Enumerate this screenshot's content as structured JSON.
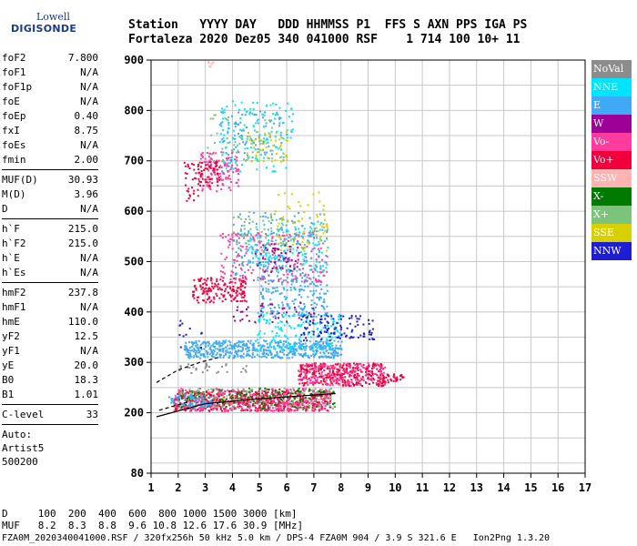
{
  "logo": {
    "line1": "Lowell",
    "line2": "DIGISONDE"
  },
  "header": {
    "line1": "Station   YYYY DAY   DDD HHMMSS P1  FFS S AXN PPS IGA PS",
    "line2": "Fortaleza 2020 Dez05 340 041000 RSF    1 714 100 10+ 11"
  },
  "params_group1": [
    {
      "k": "foF2",
      "v": "7.800"
    },
    {
      "k": "foF1",
      "v": "N/A"
    },
    {
      "k": "foF1p",
      "v": "N/A"
    },
    {
      "k": "foE",
      "v": "N/A"
    },
    {
      "k": "foEp",
      "v": "0.40"
    },
    {
      "k": "fxI",
      "v": "8.75"
    },
    {
      "k": "foEs",
      "v": "N/A"
    },
    {
      "k": "fmin",
      "v": "2.00"
    }
  ],
  "params_group2": [
    {
      "k": "MUF(D)",
      "v": "30.93"
    },
    {
      "k": "M(D)",
      "v": "3.96"
    },
    {
      "k": "D",
      "v": "N/A"
    }
  ],
  "params_group3": [
    {
      "k": "h`F",
      "v": "215.0"
    },
    {
      "k": "h`F2",
      "v": "215.0"
    },
    {
      "k": "h`E",
      "v": "N/A"
    },
    {
      "k": "h`Es",
      "v": "N/A"
    }
  ],
  "params_group4": [
    {
      "k": "hmF2",
      "v": "237.8"
    },
    {
      "k": "hmF1",
      "v": "N/A"
    },
    {
      "k": "hmE",
      "v": "110.0"
    },
    {
      "k": "yF2",
      "v": "12.5"
    },
    {
      "k": "yF1",
      "v": "N/A"
    },
    {
      "k": "yE",
      "v": "20.0"
    },
    {
      "k": "B0",
      "v": "18.3"
    },
    {
      "k": "B1",
      "v": "1.01"
    }
  ],
  "clevel": {
    "k": "C-level",
    "v": "33"
  },
  "auto": [
    "Auto:",
    "Artist5",
    "500200"
  ],
  "legend": [
    {
      "label": "NoVal",
      "color": "#8c8c8c"
    },
    {
      "label": "NNE",
      "color": "#00e5ff"
    },
    {
      "label": "E",
      "color": "#3fa9f5"
    },
    {
      "label": "W",
      "color": "#9c0096"
    },
    {
      "label": "Vo-",
      "color": "#ff3c9e"
    },
    {
      "label": "Vo+",
      "color": "#f0003c"
    },
    {
      "label": "SSW",
      "color": "#ffb4b4"
    },
    {
      "label": "X-",
      "color": "#007a00"
    },
    {
      "label": "X+",
      "color": "#7cc47c"
    },
    {
      "label": "SSE",
      "color": "#d8d000"
    },
    {
      "label": "NNW",
      "color": "#1e1ed2"
    }
  ],
  "footer": {
    "line1": "D     100  200  400  600  800 1000 1500 3000 [km]",
    "line2": "MUF   8.2  8.3  8.8  9.6 10.8 12.6 17.6 30.9 [MHz]"
  },
  "footnote": "FZA0M_2020340041000.RSF / 320fx256h 50 kHz 5.0 km / DPS-4 FZA0M 904 / 3.9 S 321.6 E   Ion2Png 1.3.20",
  "chart_data": {
    "type": "scatter",
    "xlim": [
      1,
      17
    ],
    "ylim": [
      80,
      900
    ],
    "xticks": [
      1,
      2,
      3,
      4,
      5,
      6,
      7,
      8,
      9,
      10,
      11,
      12,
      13,
      14,
      15,
      16,
      17
    ],
    "yticks": [
      80,
      200,
      300,
      400,
      500,
      600,
      700,
      800,
      900
    ],
    "grid": true,
    "legend_placement": "right",
    "clusters": [
      {
        "series": "Vo+",
        "x": [
          1.8,
          7.6
        ],
        "y": [
          205,
          245
        ],
        "n": 520
      },
      {
        "series": "Vo-",
        "x": [
          1.8,
          7.6
        ],
        "y": [
          205,
          250
        ],
        "n": 380
      },
      {
        "series": "X-",
        "x": [
          2.0,
          7.8
        ],
        "y": [
          210,
          250
        ],
        "n": 170
      },
      {
        "series": "X+",
        "x": [
          2.0,
          7.8
        ],
        "y": [
          210,
          250
        ],
        "n": 110
      },
      {
        "series": "E",
        "x": [
          1.6,
          3.2
        ],
        "y": [
          212,
          236
        ],
        "n": 70
      },
      {
        "series": "Vo+",
        "x": [
          6.4,
          9.6
        ],
        "y": [
          255,
          300
        ],
        "n": 320
      },
      {
        "series": "Vo-",
        "x": [
          6.4,
          9.6
        ],
        "y": [
          255,
          300
        ],
        "n": 160
      },
      {
        "series": "Vo+",
        "x": [
          9.5,
          10.3
        ],
        "y": [
          262,
          278
        ],
        "n": 30
      },
      {
        "series": "E",
        "x": [
          2.2,
          8.0
        ],
        "y": [
          310,
          345
        ],
        "n": 560
      },
      {
        "series": "NNE",
        "x": [
          4.8,
          8.0
        ],
        "y": [
          325,
          400
        ],
        "n": 160
      },
      {
        "series": "E",
        "x": [
          5.0,
          7.5
        ],
        "y": [
          390,
          470
        ],
        "n": 180
      },
      {
        "series": "NNW",
        "x": [
          6.5,
          9.2
        ],
        "y": [
          345,
          395
        ],
        "n": 110
      },
      {
        "series": "W",
        "x": [
          4.0,
          7.0
        ],
        "y": [
          380,
          420
        ],
        "n": 40
      },
      {
        "series": "Vo+",
        "x": [
          2.5,
          4.5
        ],
        "y": [
          420,
          470
        ],
        "n": 160
      },
      {
        "series": "Vo-",
        "x": [
          3.5,
          7.5
        ],
        "y": [
          460,
          560
        ],
        "n": 220
      },
      {
        "series": "E",
        "x": [
          4.0,
          7.5
        ],
        "y": [
          460,
          600
        ],
        "n": 180
      },
      {
        "series": "NNE",
        "x": [
          4.5,
          7.5
        ],
        "y": [
          480,
          580
        ],
        "n": 150
      },
      {
        "series": "SSE",
        "x": [
          5.5,
          7.5
        ],
        "y": [
          520,
          640
        ],
        "n": 70
      },
      {
        "series": "X+",
        "x": [
          4.0,
          6.0
        ],
        "y": [
          520,
          600
        ],
        "n": 60
      },
      {
        "series": "W",
        "x": [
          4.8,
          6.5
        ],
        "y": [
          480,
          540
        ],
        "n": 50
      },
      {
        "series": "Vo-",
        "x": [
          2.8,
          4.2
        ],
        "y": [
          640,
          720
        ],
        "n": 120
      },
      {
        "series": "Vo+",
        "x": [
          2.5,
          3.5
        ],
        "y": [
          650,
          700
        ],
        "n": 60
      },
      {
        "series": "NNE",
        "x": [
          3.5,
          6.2
        ],
        "y": [
          680,
          820
        ],
        "n": 140
      },
      {
        "series": "E",
        "x": [
          3.5,
          6.0
        ],
        "y": [
          700,
          800
        ],
        "n": 90
      },
      {
        "series": "SSE",
        "x": [
          4.5,
          6.0
        ],
        "y": [
          700,
          760
        ],
        "n": 50
      },
      {
        "series": "X+",
        "x": [
          3.0,
          5.5
        ],
        "y": [
          700,
          800
        ],
        "n": 50
      },
      {
        "series": "Vo+",
        "x": [
          2.2,
          3.0
        ],
        "y": [
          620,
          700
        ],
        "n": 30
      },
      {
        "series": "SSW",
        "x": [
          3.0,
          3.3
        ],
        "y": [
          885,
          900
        ],
        "n": 6
      },
      {
        "series": "NNW",
        "x": [
          2.0,
          3.0
        ],
        "y": [
          330,
          390
        ],
        "n": 12
      },
      {
        "series": "NoVal",
        "x": [
          2.0,
          4.5
        ],
        "y": [
          280,
          300
        ],
        "n": 30
      }
    ],
    "profile_lines": [
      {
        "style": "solid",
        "points": [
          [
            1.2,
            192
          ],
          [
            3.0,
            218
          ],
          [
            5.0,
            228
          ],
          [
            7.8,
            238
          ]
        ]
      },
      {
        "style": "dashed",
        "points": [
          [
            1.2,
            260
          ],
          [
            2.0,
            285
          ],
          [
            2.8,
            300
          ],
          [
            3.5,
            310
          ]
        ]
      },
      {
        "style": "dashed",
        "points": [
          [
            1.3,
            205
          ],
          [
            2.4,
            222
          ]
        ]
      }
    ]
  }
}
